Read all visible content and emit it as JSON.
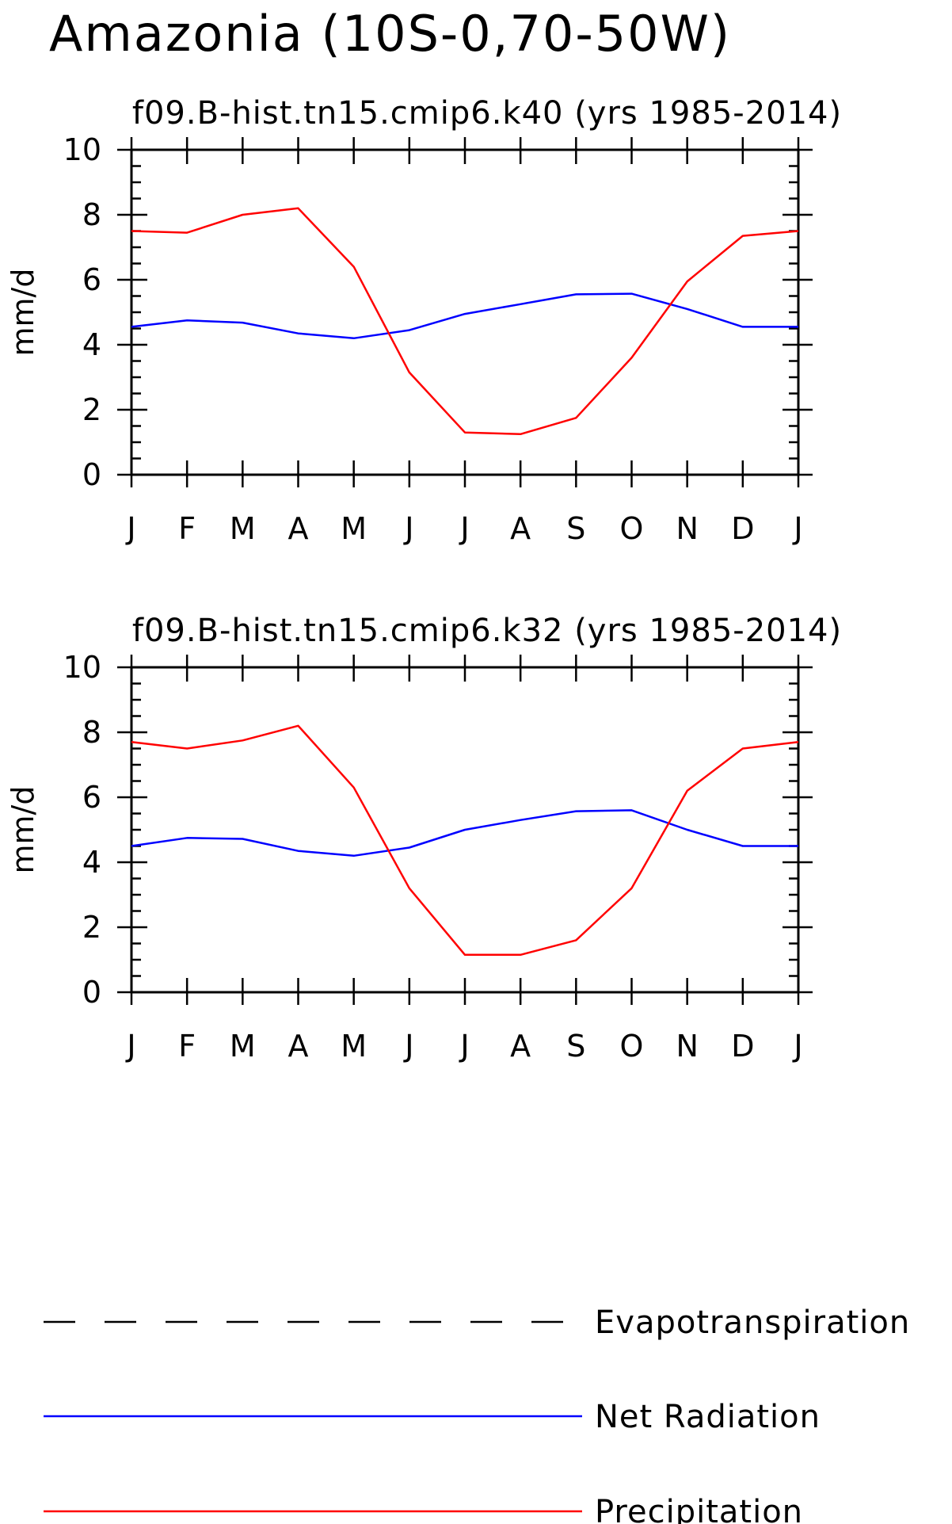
{
  "title": "Amazonia (10S-0,70-50W)",
  "chart_data": [
    {
      "type": "line",
      "title": "f09.B-hist.tn15.cmip6.k40 (yrs 1985-2014)",
      "ylabel": "mm/d",
      "ylim": [
        0,
        10
      ],
      "yticks": [
        "0",
        "2",
        "4",
        "6",
        "8",
        "10"
      ],
      "categories": [
        "J",
        "F",
        "M",
        "A",
        "M",
        "J",
        "J",
        "A",
        "S",
        "O",
        "N",
        "D",
        "J"
      ],
      "series": [
        {
          "name": "Net Radiation",
          "color": "#0000ff",
          "values": [
            4.55,
            4.75,
            4.68,
            4.35,
            4.2,
            4.45,
            4.95,
            5.25,
            5.55,
            5.57,
            5.1,
            4.55,
            4.55
          ]
        },
        {
          "name": "Precipitation",
          "color": "#ff0000",
          "values": [
            7.5,
            7.45,
            8.0,
            8.2,
            6.4,
            3.15,
            1.3,
            1.25,
            1.75,
            3.6,
            5.95,
            7.35,
            7.5
          ]
        }
      ]
    },
    {
      "type": "line",
      "title": "f09.B-hist.tn15.cmip6.k32 (yrs 1985-2014)",
      "ylabel": "mm/d",
      "ylim": [
        0,
        10
      ],
      "yticks": [
        "0",
        "2",
        "4",
        "6",
        "8",
        "10"
      ],
      "categories": [
        "J",
        "F",
        "M",
        "A",
        "M",
        "J",
        "J",
        "A",
        "S",
        "O",
        "N",
        "D",
        "J"
      ],
      "series": [
        {
          "name": "Net Radiation",
          "color": "#0000ff",
          "values": [
            4.5,
            4.75,
            4.72,
            4.35,
            4.2,
            4.45,
            5.0,
            5.3,
            5.57,
            5.6,
            5.0,
            4.5,
            4.5
          ]
        },
        {
          "name": "Precipitation",
          "color": "#ff0000",
          "values": [
            7.7,
            7.5,
            7.75,
            8.2,
            6.3,
            3.2,
            1.15,
            1.15,
            1.6,
            3.2,
            6.2,
            7.5,
            7.7
          ]
        }
      ]
    }
  ],
  "legend": [
    {
      "label": "Evapotranspiration",
      "color": "#000000",
      "style": "dashed"
    },
    {
      "label": "Net Radiation",
      "color": "#0000ff",
      "style": "solid"
    },
    {
      "label": "Precipitation",
      "color": "#ff0000",
      "style": "solid"
    }
  ]
}
